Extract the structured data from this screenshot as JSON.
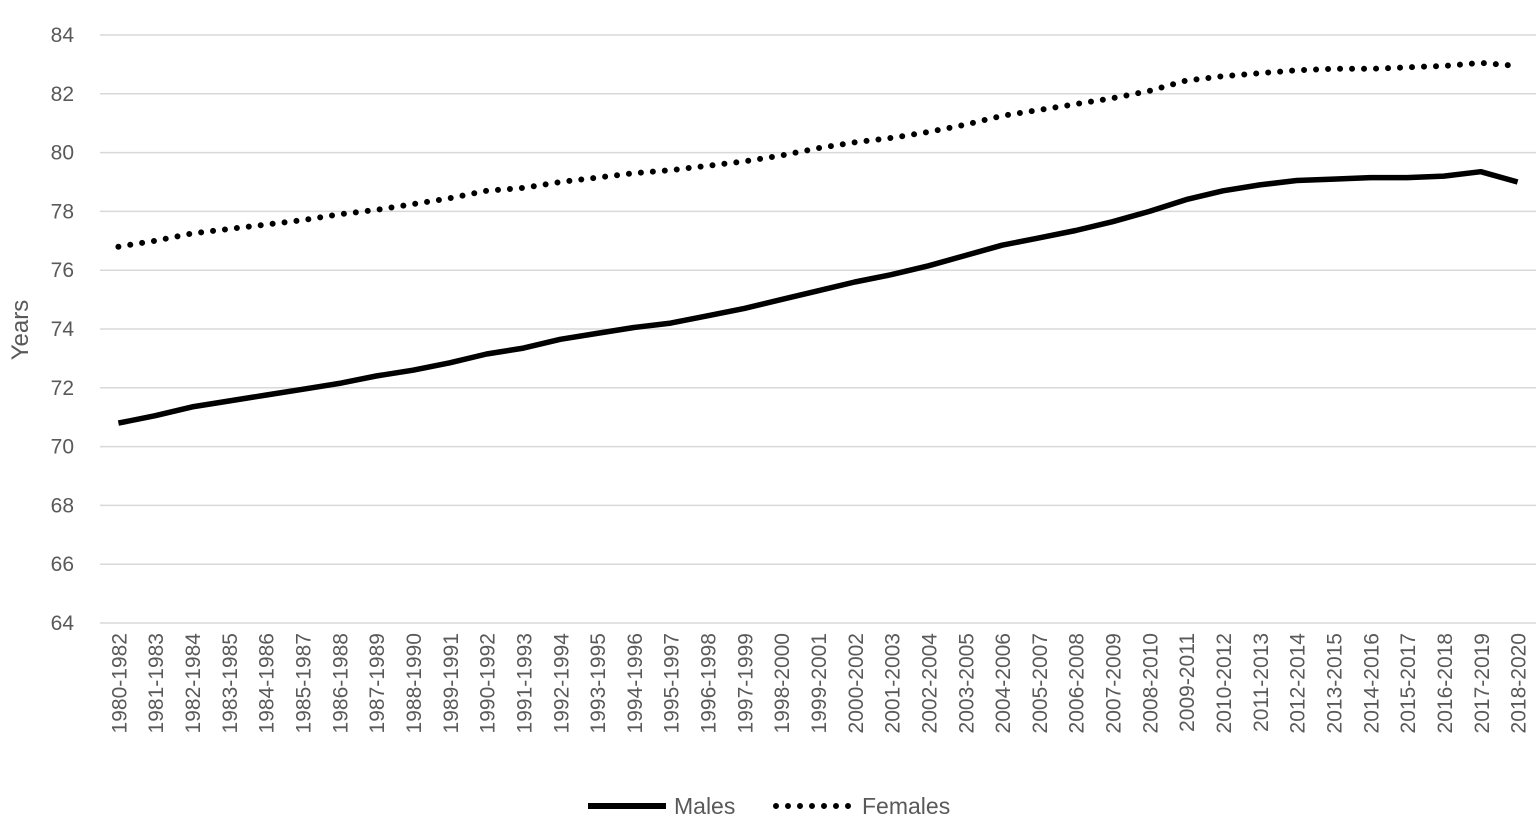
{
  "chart_data": {
    "type": "line",
    "title": "",
    "xlabel": "",
    "ylabel": "Years",
    "ylim": [
      64,
      84
    ],
    "yticks": [
      "64",
      "66",
      "68",
      "70",
      "72",
      "74",
      "76",
      "78",
      "80",
      "82",
      "84"
    ],
    "grid": true,
    "legend_position": "bottom",
    "categories": [
      "1980-1982",
      "1981-1983",
      "1982-1984",
      "1983-1985",
      "1984-1986",
      "1985-1987",
      "1986-1988",
      "1987-1989",
      "1988-1990",
      "1989-1991",
      "1990-1992",
      "1991-1993",
      "1992-1994",
      "1993-1995",
      "1994-1996",
      "1995-1997",
      "1996-1998",
      "1997-1999",
      "1998-2000",
      "1999-2001",
      "2000-2002",
      "2001-2003",
      "2002-2004",
      "2003-2005",
      "2004-2006",
      "2005-2007",
      "2006-2008",
      "2007-2009",
      "2008-2010",
      "2009-2011",
      "2010-2012",
      "2011-2013",
      "2012-2014",
      "2013-2015",
      "2014-2016",
      "2015-2017",
      "2016-2018",
      "2017-2019",
      "2018-2020"
    ],
    "series": [
      {
        "name": "Males",
        "style": "solid",
        "color": "#000000",
        "values": [
          70.8,
          71.05,
          71.35,
          71.55,
          71.75,
          71.95,
          72.15,
          72.4,
          72.6,
          72.85,
          73.15,
          73.35,
          73.65,
          73.85,
          74.05,
          74.2,
          74.45,
          74.7,
          75.0,
          75.3,
          75.6,
          75.85,
          76.15,
          76.5,
          76.85,
          77.1,
          77.35,
          77.65,
          78.0,
          78.4,
          78.7,
          78.9,
          79.05,
          79.1,
          79.15,
          79.15,
          79.2,
          79.35,
          79.0
        ]
      },
      {
        "name": "Females",
        "style": "dotted",
        "color": "#000000",
        "values": [
          76.8,
          77.0,
          77.25,
          77.4,
          77.55,
          77.7,
          77.9,
          78.05,
          78.25,
          78.45,
          78.7,
          78.8,
          79.0,
          79.15,
          79.3,
          79.4,
          79.55,
          79.7,
          79.9,
          80.15,
          80.35,
          80.5,
          80.7,
          80.95,
          81.25,
          81.45,
          81.65,
          81.85,
          82.1,
          82.45,
          82.6,
          82.7,
          82.8,
          82.85,
          82.85,
          82.9,
          82.95,
          83.05,
          82.95
        ]
      }
    ],
    "axis_color": "#d9d9d9",
    "grid_color": "#d9d9d9",
    "text_color": "#595959"
  }
}
